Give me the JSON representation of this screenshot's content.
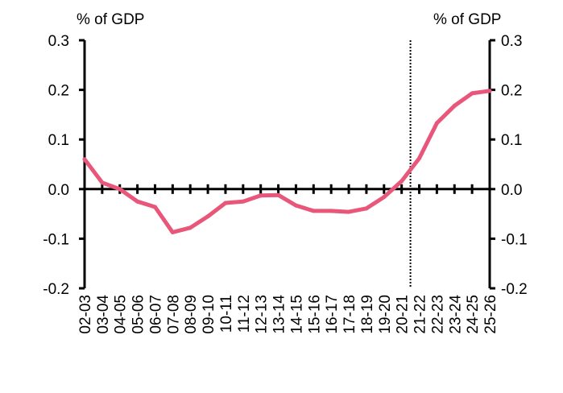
{
  "chart_data": {
    "type": "line",
    "title": "",
    "left_axis_unit": "% of GDP",
    "right_axis_unit": "% of GDP",
    "xlabel": "",
    "ylabel": "% of GDP",
    "ylim": [
      -0.2,
      0.3
    ],
    "y_ticks": [
      0.3,
      0.2,
      0.1,
      0.0,
      -0.1,
      -0.2
    ],
    "y_tick_labels": [
      "0.3",
      "0.2",
      "0.1",
      "0.0",
      "-0.1",
      "-0.2"
    ],
    "categories": [
      "02-03",
      "03-04",
      "04-05",
      "05-06",
      "06-07",
      "07-08",
      "08-09",
      "09-10",
      "10-11",
      "11-12",
      "12-13",
      "13-14",
      "14-15",
      "15-16",
      "16-17",
      "17-18",
      "18-19",
      "19-20",
      "20-21",
      "21-22",
      "22-23",
      "23-24",
      "24-25",
      "25-26"
    ],
    "series": [
      {
        "name": "% of GDP",
        "color": "#e8577a",
        "values": [
          0.06,
          0.013,
          0.0,
          -0.025,
          -0.036,
          -0.087,
          -0.078,
          -0.055,
          -0.028,
          -0.025,
          -0.013,
          -0.012,
          -0.033,
          -0.044,
          -0.044,
          -0.046,
          -0.039,
          -0.016,
          0.016,
          0.062,
          0.133,
          0.168,
          0.193,
          0.198
        ]
      }
    ],
    "forecast_divider_after": "20-21",
    "grid": false,
    "legend": "none"
  }
}
